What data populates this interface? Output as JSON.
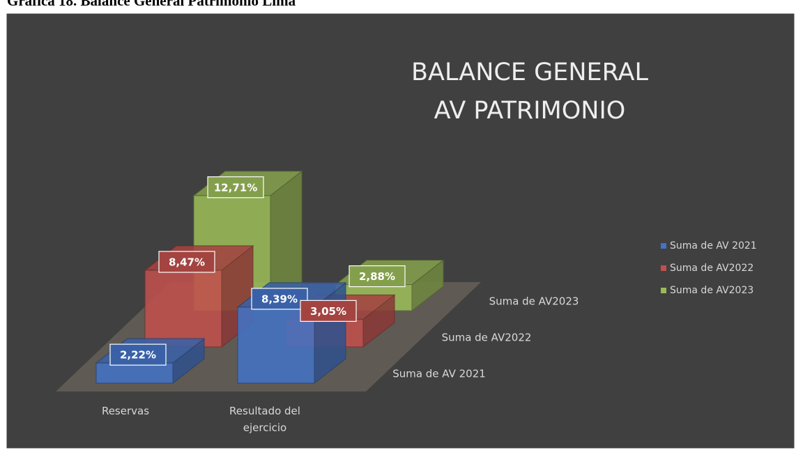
{
  "caption": "Gráfica 18. Balance General Patrimonio Lima",
  "chart_data": {
    "type": "bar3d",
    "title": [
      "BALANCE GENERAL",
      "AV PATRIMONIO"
    ],
    "categories": [
      "Reservas",
      "Resultado del ejercicio"
    ],
    "series": [
      {
        "name": "Suma de AV 2021",
        "color": "#4472c4",
        "values": [
          2.22,
          8.39
        ],
        "value_labels": [
          "2,22%",
          "8,39%"
        ]
      },
      {
        "name": "Suma de AV2022",
        "color": "#c0504d",
        "values": [
          8.47,
          3.05
        ],
        "value_labels": [
          "8,47%",
          "3,05%"
        ]
      },
      {
        "name": "Suma de AV2023",
        "color": "#9bbb59",
        "values": [
          12.71,
          2.88
        ],
        "value_labels": [
          "12,71%",
          "2,88%"
        ]
      }
    ],
    "legend": "right"
  }
}
